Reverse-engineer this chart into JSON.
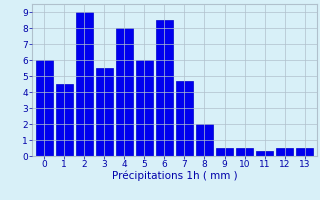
{
  "categories": [
    0,
    1,
    2,
    3,
    4,
    5,
    6,
    7,
    8,
    9,
    10,
    11,
    12,
    13
  ],
  "values": [
    6,
    4.5,
    9,
    5.5,
    8,
    6,
    8.5,
    4.7,
    2,
    0.5,
    0.5,
    0.3,
    0.5,
    0.5
  ],
  "bar_color": "#0000ee",
  "bar_edge_color": "#0000cc",
  "background_color": "#d8f0f8",
  "grid_color": "#b0c0cc",
  "xlabel": "Précipitations 1h ( mm )",
  "ylim": [
    0,
    9.5
  ],
  "yticks": [
    0,
    1,
    2,
    3,
    4,
    5,
    6,
    7,
    8,
    9
  ],
  "xticks": [
    0,
    1,
    2,
    3,
    4,
    5,
    6,
    7,
    8,
    9,
    10,
    11,
    12,
    13
  ],
  "tick_fontsize": 6.5,
  "xlabel_fontsize": 7.5,
  "label_color": "#0000aa"
}
